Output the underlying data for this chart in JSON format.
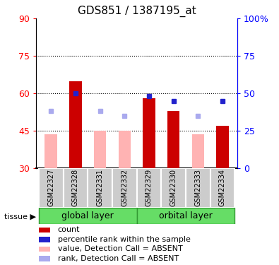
{
  "title": "GDS851 / 1387195_at",
  "samples": [
    "GSM22327",
    "GSM22328",
    "GSM22331",
    "GSM22332",
    "GSM22329",
    "GSM22330",
    "GSM22333",
    "GSM22334"
  ],
  "bar_values": [
    43.5,
    65,
    45,
    45,
    58,
    53,
    43.5,
    47
  ],
  "bar_colors": [
    "#ffb3b3",
    "#cc0000",
    "#ffb3b3",
    "#ffb3b3",
    "#cc0000",
    "#cc0000",
    "#ffb3b3",
    "#cc0000"
  ],
  "rank_values_left": [
    53,
    60,
    53,
    51,
    59,
    57,
    51,
    57
  ],
  "rank_colors": [
    "#aaaaee",
    "#2222cc",
    "#aaaaee",
    "#aaaaee",
    "#2222cc",
    "#2222cc",
    "#aaaaee",
    "#2222cc"
  ],
  "ylim_left": [
    30,
    90
  ],
  "ylim_right": [
    0,
    100
  ],
  "yticks_left": [
    30,
    45,
    60,
    75,
    90
  ],
  "yticks_right": [
    0,
    25,
    50,
    75,
    100
  ],
  "ytick_labels_right": [
    "0",
    "25",
    "50",
    "75",
    "100%"
  ],
  "hlines": [
    45,
    60,
    75
  ],
  "group1_label": "global layer",
  "group2_label": "orbital layer",
  "group_color": "#66dd66",
  "sample_box_color": "#cccccc",
  "tissue_label": "tissue",
  "legend_colors": [
    "#cc0000",
    "#2222cc",
    "#ffb3b3",
    "#aaaaee"
  ],
  "legend_labels": [
    "count",
    "percentile rank within the sample",
    "value, Detection Call = ABSENT",
    "rank, Detection Call = ABSENT"
  ],
  "title_fontsize": 11,
  "axis_fontsize": 9,
  "legend_fontsize": 8,
  "sample_fontsize": 7
}
